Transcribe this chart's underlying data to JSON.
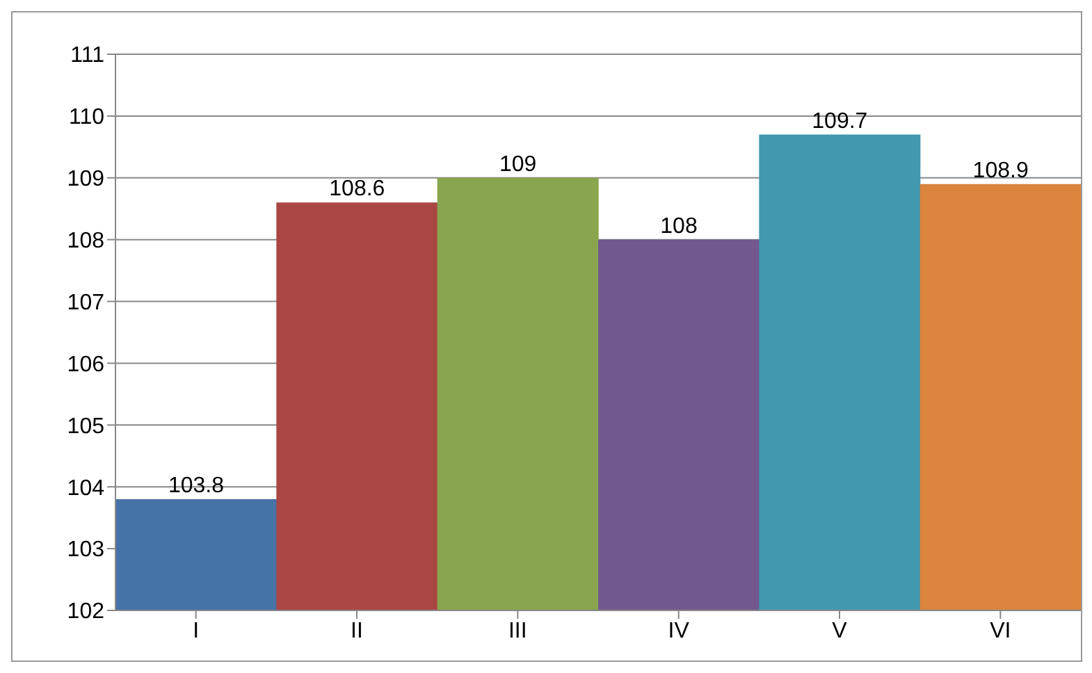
{
  "chart_data": {
    "type": "bar",
    "categories": [
      "I",
      "II",
      "III",
      "IV",
      "V",
      "VI"
    ],
    "values": [
      103.8,
      108.6,
      109,
      108,
      109.7,
      108.9
    ],
    "colors": [
      "#4572a7",
      "#aa4643",
      "#89a54e",
      "#71588f",
      "#4198af",
      "#db843d"
    ],
    "ylim": [
      102,
      111
    ],
    "yticks": [
      102,
      103,
      104,
      105,
      106,
      107,
      108,
      109,
      110,
      111
    ],
    "grid": "y",
    "data_labels": true
  }
}
